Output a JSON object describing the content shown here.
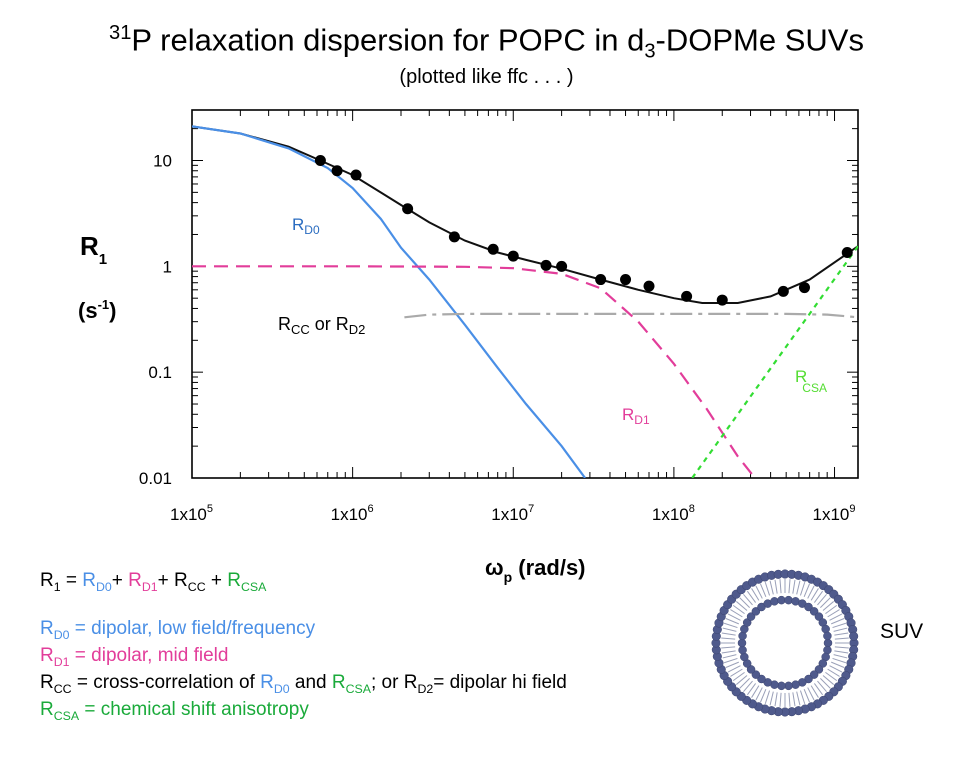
{
  "header": {
    "title_sup": "31",
    "title_main": "P relaxation dispersion for POPC in d",
    "title_sub": "3",
    "title_end": "-DOPMe SUVs",
    "subtitle": "(plotted like ffc . . . )"
  },
  "chart_data": {
    "type": "line",
    "xscale": "log",
    "yscale": "log",
    "xlim": [
      100000,
      1400000000
    ],
    "ylim": [
      0.01,
      30
    ],
    "x_ticks": [
      {
        "value": 100000,
        "label": "1x10",
        "exp": "5"
      },
      {
        "value": 1000000,
        "label": "1x10",
        "exp": "6"
      },
      {
        "value": 10000000,
        "label": "1x10",
        "exp": "7"
      },
      {
        "value": 100000000,
        "label": "1x10",
        "exp": "8"
      },
      {
        "value": 1000000000,
        "label": "1x10",
        "exp": "9"
      }
    ],
    "y_ticks": [
      {
        "value": 10,
        "label": "10"
      },
      {
        "value": 1,
        "label": "1"
      },
      {
        "value": 0.1,
        "label": "0.1"
      },
      {
        "value": 0.01,
        "label": "0.01"
      }
    ],
    "ylabel_main": "R",
    "ylabel_sub": "1",
    "yunit_open": "(s",
    "yunit_sup": "-1",
    "yunit_close": ")",
    "xlabel_main": "ω",
    "xlabel_sub": "p",
    "xlabel_unit": " (rad/s)",
    "points": {
      "x": [
        630000,
        800000,
        1050000,
        2200000,
        4300000,
        7500000,
        10000000,
        16000000,
        20000000,
        35000000,
        50000000,
        70000000,
        120000000,
        200000000,
        480000000,
        650000000,
        1200000000
      ],
      "y": [
        10,
        8,
        7.3,
        3.5,
        1.9,
        1.45,
        1.25,
        1.02,
        1.0,
        0.75,
        0.75,
        0.65,
        0.52,
        0.48,
        0.58,
        0.63,
        1.35
      ]
    },
    "series": [
      {
        "key": "fit",
        "color": "#111111",
        "dash": "",
        "x": [
          100000,
          200000,
          400000,
          630000,
          1000000,
          2000000,
          3000000,
          5000000,
          8000000,
          12000000,
          20000000,
          35000000,
          60000000,
          100000000,
          150000000,
          250000000,
          400000000,
          700000000,
          1400000000
        ],
        "y": [
          21,
          18,
          13.5,
          10,
          7.3,
          3.8,
          2.6,
          1.75,
          1.35,
          1.15,
          0.95,
          0.75,
          0.6,
          0.5,
          0.45,
          0.45,
          0.52,
          0.75,
          1.55
        ]
      },
      {
        "key": "RD0",
        "color": "#4a8fe6",
        "dash": "",
        "x": [
          100000,
          200000,
          400000,
          700000,
          1000000,
          1500000,
          2000000,
          3000000,
          5000000,
          8000000,
          12000000,
          20000000,
          28000000
        ],
        "y": [
          21,
          18,
          13,
          8.5,
          5.5,
          2.8,
          1.5,
          0.75,
          0.28,
          0.11,
          0.05,
          0.02,
          0.01
        ]
      },
      {
        "key": "RD1",
        "color": "#e23d9a",
        "dash": "14 8",
        "x": [
          100000,
          1000000,
          5000000,
          10000000,
          20000000,
          35000000,
          60000000,
          100000000,
          160000000,
          250000000,
          320000000
        ],
        "y": [
          1,
          1,
          0.99,
          0.96,
          0.85,
          0.62,
          0.3,
          0.12,
          0.045,
          0.016,
          0.01
        ]
      },
      {
        "key": "RCC",
        "color": "#aaaaaa",
        "dash": "22 6 4 6",
        "x": [
          2100000,
          3000000,
          5000000,
          20000000,
          100000000,
          500000000,
          900000000,
          1400000000
        ],
        "y": [
          0.33,
          0.35,
          0.355,
          0.355,
          0.355,
          0.355,
          0.35,
          0.33
        ]
      },
      {
        "key": "RCSA",
        "color": "#33dd33",
        "dash": "5 5",
        "x": [
          130000000,
          1400000000
        ],
        "y": [
          0.01,
          1.55
        ]
      }
    ],
    "annotations": {
      "rd0": {
        "main": "R",
        "sub": "D0"
      },
      "rd1": {
        "main": "R",
        "sub": "D1"
      },
      "rcc_main": "R",
      "rcc_sub": "CC",
      "rcc_mid": " or ",
      "rd2_main": "R",
      "rd2_sub": "D2",
      "rcsa": {
        "main": "R",
        "sub": "CSA"
      }
    }
  },
  "equation": {
    "r1": "R",
    "r1_sub": "1",
    "eq": " = ",
    "rd0": "R",
    "rd0_sub": "D0",
    "plus1": "+ ",
    "rd1": "R",
    "rd1_sub": "D1",
    "plus2": "+ ",
    "rcc": "R",
    "rcc_sub": "CC",
    "plus3": " + ",
    "rcsa": "R",
    "rcsa_sub": "CSA"
  },
  "definitions": {
    "rd0": {
      "main": "R",
      "sub": "D0",
      "text": " = dipolar, low field/frequency"
    },
    "rd1": {
      "main": "R",
      "sub": "D1",
      "text": " = dipolar, mid field"
    },
    "rcc": {
      "main": "R",
      "sub": "CC",
      "text1": " = cross-correlation of ",
      "rd0": "R",
      "rd0_sub": "D0",
      "and": " and ",
      "rcsa": "R",
      "rcsa_sub": "CSA",
      "text2": "; or ",
      "rd2": "R",
      "rd2_sub": "D2",
      "text3": "= dipolar hi field"
    },
    "rcsa": {
      "main": "R",
      "sub": "CSA",
      "text": " = chemical shift anisotropy"
    }
  },
  "suv_label": "SUV"
}
